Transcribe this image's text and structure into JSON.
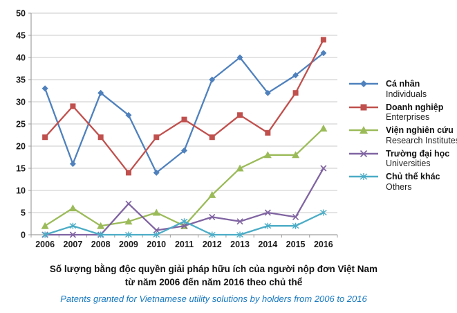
{
  "colors": {
    "subtitle_blue": "#1779C1",
    "gridline": "#C9C9C9",
    "axis": "#A0A0A0",
    "text": "#1a1a1a"
  },
  "title": {
    "vi_line1": "Số lượng bằng độc quyền giải pháp hữu ích của người nộp đơn Việt Nam",
    "vi_line2": "từ năm 2006 đến năm 2016 theo chủ thể",
    "en_subtitle": "Patents granted for Vietnamese utility solutions by holders from 2006 to 2016"
  },
  "chart_data": {
    "type": "line",
    "x": [
      2006,
      2007,
      2008,
      2009,
      2010,
      2011,
      2012,
      2013,
      2014,
      2015,
      2016
    ],
    "series": [
      {
        "name_vi": "Cá nhân",
        "name_en": "Individuals",
        "color": "#4F81BD",
        "marker": "diamond",
        "values": [
          33,
          16,
          32,
          27,
          14,
          19,
          35,
          40,
          32,
          36,
          41
        ]
      },
      {
        "name_vi": "Doanh nghiệp",
        "name_en": "Enterprises",
        "color": "#C0504D",
        "marker": "square",
        "values": [
          22,
          29,
          22,
          14,
          22,
          26,
          22,
          27,
          23,
          32,
          44
        ]
      },
      {
        "name_vi": "Viện nghiên cứu",
        "name_en": "Research Institutes",
        "color": "#9BBB59",
        "marker": "triangle",
        "values": [
          2,
          6,
          2,
          3,
          5,
          2,
          9,
          15,
          18,
          18,
          24
        ]
      },
      {
        "name_vi": "Trường đại học",
        "name_en": "Universities",
        "color": "#8064A2",
        "marker": "x",
        "values": [
          0,
          0,
          0,
          7,
          1,
          2,
          4,
          3,
          5,
          4,
          15
        ]
      },
      {
        "name_vi": "Chủ thể khác",
        "name_en": "Others",
        "color": "#4BACC6",
        "marker": "asterisk",
        "values": [
          0,
          2,
          0,
          0,
          0,
          3,
          0,
          0,
          2,
          2,
          5
        ]
      }
    ],
    "ylim": [
      0,
      50
    ],
    "y_step": 5,
    "y_ticks": [
      0,
      5,
      10,
      15,
      20,
      25,
      30,
      35,
      40,
      45,
      50
    ],
    "grid": true,
    "legend_position": "right",
    "title": "Số lượng bằng độc quyền giải pháp hữu ích của người nộp đơn Việt Nam từ năm 2006 đến năm 2016 theo chủ thể",
    "subtitle": "Patents granted for Vietnamese utility solutions by holders from 2006 to 2016",
    "xlabel": "",
    "ylabel": ""
  }
}
